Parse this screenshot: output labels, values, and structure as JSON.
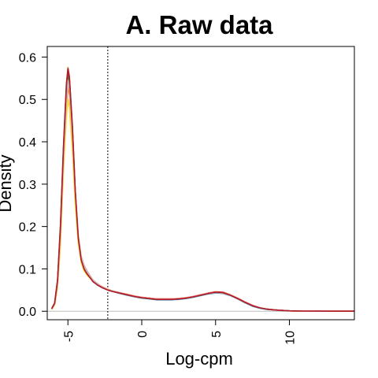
{
  "chart_data": {
    "type": "line",
    "title": "A. Raw data",
    "xlabel": "Log-cpm",
    "ylabel": "Density",
    "xlim": [
      -6.4,
      14.4
    ],
    "ylim": [
      -0.02,
      0.625
    ],
    "x_ticks": [
      -5,
      0,
      5,
      10
    ],
    "x_tick_labels": [
      "-5",
      "0",
      "5",
      "10"
    ],
    "y_ticks": [
      0.0,
      0.1,
      0.2,
      0.3,
      0.4,
      0.5,
      0.6
    ],
    "y_tick_labels": [
      "0.0",
      "0.1",
      "0.2",
      "0.3",
      "0.4",
      "0.5",
      "0.6"
    ],
    "cutoff_line": {
      "x": -2.3,
      "style": "dotted",
      "color": "#000000"
    },
    "baseline": {
      "y": 0,
      "color": "#bdbdbd"
    },
    "grid": false,
    "legend": "none",
    "x": [
      -6.1,
      -5.9,
      -5.7,
      -5.5,
      -5.3,
      -5.1,
      -5.0,
      -4.9,
      -4.7,
      -4.5,
      -4.3,
      -4.1,
      -3.9,
      -3.7,
      -3.5,
      -3.3,
      -3.0,
      -2.7,
      -2.3,
      -2.0,
      -1.5,
      -1.0,
      -0.5,
      0.0,
      0.5,
      1.0,
      1.5,
      2.0,
      2.5,
      3.0,
      3.5,
      4.0,
      4.5,
      5.0,
      5.5,
      6.0,
      6.5,
      7.0,
      7.5,
      8.0,
      8.5,
      9.0,
      9.5,
      10.0,
      11.0,
      12.0,
      13.0,
      14.4
    ],
    "series": [
      {
        "color": "#6a3d9a",
        "values": [
          0.005,
          0.018,
          0.07,
          0.2,
          0.38,
          0.53,
          0.57,
          0.55,
          0.43,
          0.28,
          0.17,
          0.12,
          0.1,
          0.09,
          0.08,
          0.07,
          0.063,
          0.057,
          0.05,
          0.047,
          0.043,
          0.039,
          0.035,
          0.032,
          0.03,
          0.028,
          0.028,
          0.028,
          0.029,
          0.031,
          0.034,
          0.038,
          0.042,
          0.044,
          0.043,
          0.038,
          0.03,
          0.021,
          0.013,
          0.008,
          0.005,
          0.003,
          0.002,
          0.001,
          0.0005,
          0.0002,
          0.0001,
          0.0
        ]
      },
      {
        "color": "#1f78b4",
        "values": [
          0.005,
          0.017,
          0.068,
          0.19,
          0.37,
          0.52,
          0.56,
          0.54,
          0.42,
          0.27,
          0.165,
          0.118,
          0.098,
          0.088,
          0.079,
          0.07,
          0.062,
          0.056,
          0.05,
          0.047,
          0.042,
          0.038,
          0.034,
          0.031,
          0.029,
          0.027,
          0.027,
          0.027,
          0.028,
          0.03,
          0.033,
          0.037,
          0.041,
          0.043,
          0.042,
          0.037,
          0.029,
          0.02,
          0.012,
          0.007,
          0.004,
          0.003,
          0.002,
          0.001,
          0.0005,
          0.0002,
          0.0001,
          0.0
        ]
      },
      {
        "color": "#33a02c",
        "values": [
          0.005,
          0.017,
          0.066,
          0.19,
          0.36,
          0.51,
          0.55,
          0.53,
          0.42,
          0.27,
          0.168,
          0.12,
          0.1,
          0.09,
          0.08,
          0.071,
          0.063,
          0.057,
          0.051,
          0.048,
          0.043,
          0.039,
          0.035,
          0.032,
          0.03,
          0.028,
          0.028,
          0.028,
          0.029,
          0.031,
          0.034,
          0.038,
          0.042,
          0.044,
          0.043,
          0.038,
          0.03,
          0.021,
          0.013,
          0.008,
          0.005,
          0.003,
          0.002,
          0.001,
          0.0005,
          0.0002,
          0.0001,
          0.0
        ]
      },
      {
        "color": "#e31a1c",
        "values": [
          0.006,
          0.019,
          0.072,
          0.2,
          0.38,
          0.53,
          0.57,
          0.55,
          0.43,
          0.28,
          0.172,
          0.122,
          0.101,
          0.09,
          0.081,
          0.072,
          0.064,
          0.058,
          0.051,
          0.048,
          0.044,
          0.04,
          0.036,
          0.033,
          0.031,
          0.029,
          0.029,
          0.029,
          0.03,
          0.032,
          0.035,
          0.039,
          0.043,
          0.046,
          0.045,
          0.039,
          0.031,
          0.022,
          0.014,
          0.008,
          0.005,
          0.003,
          0.002,
          0.001,
          0.0005,
          0.0002,
          0.0001,
          0.0
        ]
      },
      {
        "color": "#ff7f00",
        "values": [
          0.005,
          0.016,
          0.062,
          0.18,
          0.35,
          0.49,
          0.53,
          0.51,
          0.41,
          0.27,
          0.17,
          0.125,
          0.104,
          0.092,
          0.082,
          0.073,
          0.065,
          0.058,
          0.052,
          0.048,
          0.044,
          0.04,
          0.036,
          0.033,
          0.031,
          0.029,
          0.029,
          0.029,
          0.03,
          0.032,
          0.035,
          0.039,
          0.043,
          0.045,
          0.044,
          0.039,
          0.031,
          0.022,
          0.013,
          0.008,
          0.005,
          0.003,
          0.002,
          0.001,
          0.0005,
          0.0002,
          0.0001,
          0.0
        ]
      },
      {
        "color": "#ffd92f",
        "values": [
          0.004,
          0.014,
          0.055,
          0.16,
          0.33,
          0.46,
          0.5,
          0.48,
          0.38,
          0.25,
          0.16,
          0.115,
          0.095,
          0.085,
          0.078,
          0.07,
          0.063,
          0.057,
          0.051,
          0.047,
          0.043,
          0.039,
          0.035,
          0.032,
          0.03,
          0.028,
          0.028,
          0.028,
          0.029,
          0.031,
          0.034,
          0.038,
          0.042,
          0.044,
          0.043,
          0.038,
          0.03,
          0.021,
          0.013,
          0.008,
          0.005,
          0.003,
          0.002,
          0.001,
          0.0005,
          0.0002,
          0.0001,
          0.0
        ]
      },
      {
        "color": "#a6761d",
        "values": [
          0.006,
          0.02,
          0.075,
          0.21,
          0.39,
          0.54,
          0.575,
          0.555,
          0.44,
          0.285,
          0.175,
          0.123,
          0.1,
          0.089,
          0.08,
          0.071,
          0.063,
          0.057,
          0.05,
          0.047,
          0.043,
          0.039,
          0.035,
          0.032,
          0.03,
          0.028,
          0.028,
          0.028,
          0.029,
          0.031,
          0.034,
          0.038,
          0.042,
          0.045,
          0.044,
          0.038,
          0.03,
          0.021,
          0.013,
          0.008,
          0.005,
          0.003,
          0.002,
          0.001,
          0.0005,
          0.0002,
          0.0001,
          0.0
        ]
      },
      {
        "color": "#fb9a99",
        "values": [
          0.005,
          0.016,
          0.064,
          0.185,
          0.36,
          0.5,
          0.54,
          0.52,
          0.415,
          0.28,
          0.18,
          0.13,
          0.108,
          0.095,
          0.084,
          0.074,
          0.065,
          0.058,
          0.051,
          0.048,
          0.044,
          0.04,
          0.036,
          0.033,
          0.031,
          0.029,
          0.029,
          0.029,
          0.03,
          0.032,
          0.035,
          0.039,
          0.043,
          0.045,
          0.044,
          0.039,
          0.031,
          0.022,
          0.013,
          0.008,
          0.005,
          0.003,
          0.002,
          0.001,
          0.0005,
          0.0002,
          0.0001,
          0.0
        ]
      },
      {
        "color": "#bdbdbd",
        "values": [
          0.005,
          0.017,
          0.065,
          0.19,
          0.36,
          0.5,
          0.545,
          0.525,
          0.42,
          0.28,
          0.178,
          0.128,
          0.106,
          0.093,
          0.083,
          0.073,
          0.064,
          0.057,
          0.051,
          0.048,
          0.043,
          0.039,
          0.035,
          0.032,
          0.03,
          0.028,
          0.028,
          0.028,
          0.029,
          0.031,
          0.034,
          0.038,
          0.042,
          0.044,
          0.043,
          0.038,
          0.03,
          0.021,
          0.013,
          0.008,
          0.005,
          0.003,
          0.002,
          0.001,
          0.0005,
          0.0002,
          0.0001,
          0.0
        ]
      },
      {
        "color": "#b2182b",
        "values": [
          0.006,
          0.019,
          0.073,
          0.205,
          0.385,
          0.535,
          0.572,
          0.552,
          0.435,
          0.283,
          0.173,
          0.121,
          0.099,
          0.088,
          0.079,
          0.07,
          0.062,
          0.056,
          0.05,
          0.047,
          0.043,
          0.039,
          0.035,
          0.032,
          0.03,
          0.028,
          0.028,
          0.028,
          0.029,
          0.031,
          0.034,
          0.038,
          0.042,
          0.045,
          0.044,
          0.038,
          0.03,
          0.021,
          0.013,
          0.008,
          0.005,
          0.003,
          0.002,
          0.001,
          0.0005,
          0.0002,
          0.0001,
          0.0
        ]
      }
    ]
  }
}
